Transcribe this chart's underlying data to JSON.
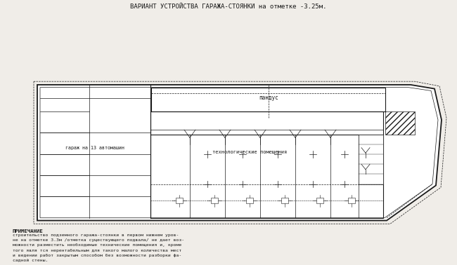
{
  "title": "ВАРИАНТ УСТРОЙСТВА ГАРАЖА-СТОЯНКИ на отметке -3.25м.",
  "title_fontsize": 6.5,
  "bg_color": "#f0ede8",
  "line_color": "#1a1a1a",
  "note_title": "ПРИМЕЧАНИЕ",
  "note_text": "строительство подземного гаража-стоянки в первом нижнем уров-\nне на отметке 3.3м /отметка существующего подвала/ не дает воз-\nможности разместить необходимые технические помещения и, кроме\nтого явля тся нерентабельным для такого малого количества мест\nи ведении работ закрытым способом без возможности разборки фа-\nсадной стены.",
  "label_ramp": "пандус",
  "label_garage": "гараж на 13 автомашин",
  "label_tech": "технологические помещения"
}
